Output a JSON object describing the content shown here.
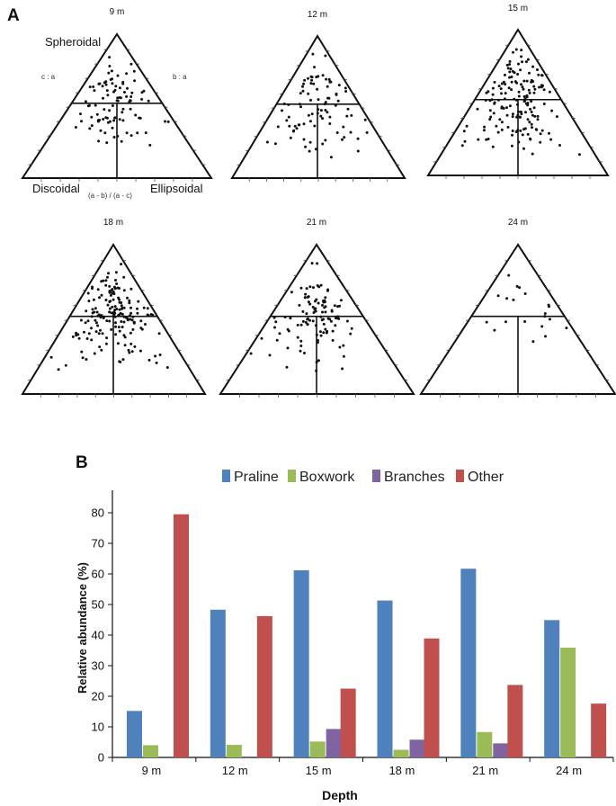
{
  "panel_a": {
    "label": "A",
    "vertex_top": "Spheroidal",
    "vertex_left": "Discoidal",
    "vertex_right": "Ellipsoidal",
    "left_axis": "c : a",
    "right_axis": "b : a",
    "bottom_axis": "(a - b) / (a - c)",
    "plots": [
      {
        "depth": "9 m",
        "n_points": 95,
        "seed": 11
      },
      {
        "depth": "12 m",
        "n_points": 90,
        "seed": 23
      },
      {
        "depth": "15 m",
        "n_points": 160,
        "seed": 37
      },
      {
        "depth": "18 m",
        "n_points": 170,
        "seed": 41
      },
      {
        "depth": "21 m",
        "n_points": 110,
        "seed": 53
      },
      {
        "depth": "24 m",
        "n_points": 20,
        "seed": 67
      }
    ]
  },
  "panel_b": {
    "label": "B"
  },
  "colors": {
    "Praline": "#4f81bd",
    "Boxwork": "#9bbb59",
    "Branches": "#8064a2",
    "Other": "#c0504d",
    "ink": "#111111"
  },
  "chart_data": {
    "type": "bar",
    "title": "",
    "xlabel": "Depth",
    "ylabel": "Relative abundance (%)",
    "ylim": [
      0,
      85
    ],
    "yticks": [
      0,
      10,
      20,
      30,
      40,
      50,
      60,
      70,
      80
    ],
    "categories": [
      "9 m",
      "12 m",
      "15 m",
      "18 m",
      "21 m",
      "24 m"
    ],
    "legend_position": "top",
    "series": [
      {
        "name": "Praline",
        "values": [
          15.2,
          48.3,
          61.2,
          51.3,
          61.7,
          44.9
        ]
      },
      {
        "name": "Boxwork",
        "values": [
          4.0,
          4.1,
          5.2,
          2.5,
          8.3,
          35.9
        ]
      },
      {
        "name": "Branches",
        "values": [
          0,
          0,
          9.3,
          5.8,
          4.6,
          0
        ]
      },
      {
        "name": "Other",
        "values": [
          79.5,
          46.2,
          22.5,
          38.9,
          23.7,
          17.6
        ]
      }
    ]
  }
}
